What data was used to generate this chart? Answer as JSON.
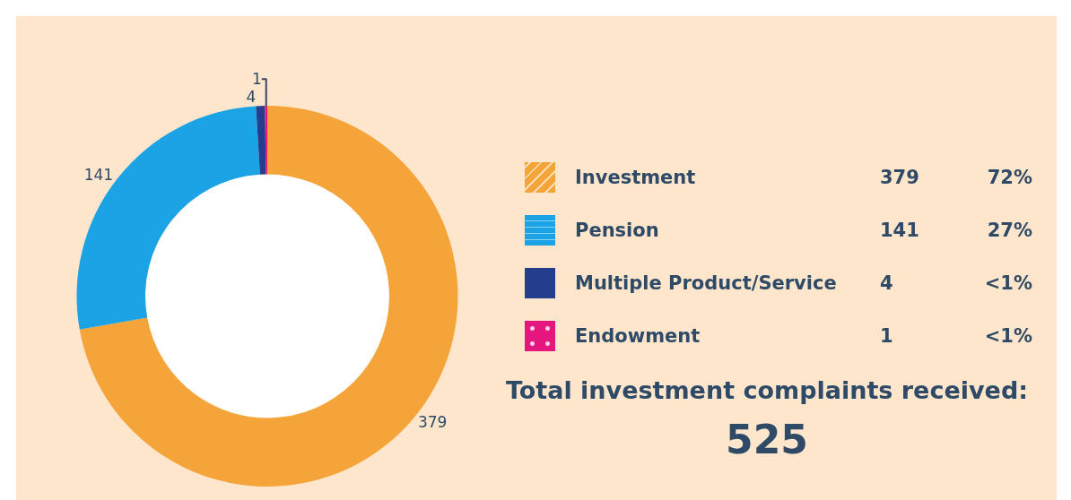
{
  "chart_data": {
    "type": "donut",
    "title": "Total investment complaints received:",
    "subtitle": "525",
    "categories": [
      "Investment",
      "Pension",
      "Multiple Product/Service",
      "Endowment"
    ],
    "values": [
      379,
      141,
      4,
      1
    ],
    "colors": [
      "#f5a43a",
      "#1ba3e6",
      "#243d8c",
      "#e5177e"
    ],
    "data_labels": true,
    "annotations": [
      "379",
      "72%",
      "141",
      "27%",
      "4",
      "<1%",
      "1",
      "<1%"
    ],
    "legend": "right"
  }
}
